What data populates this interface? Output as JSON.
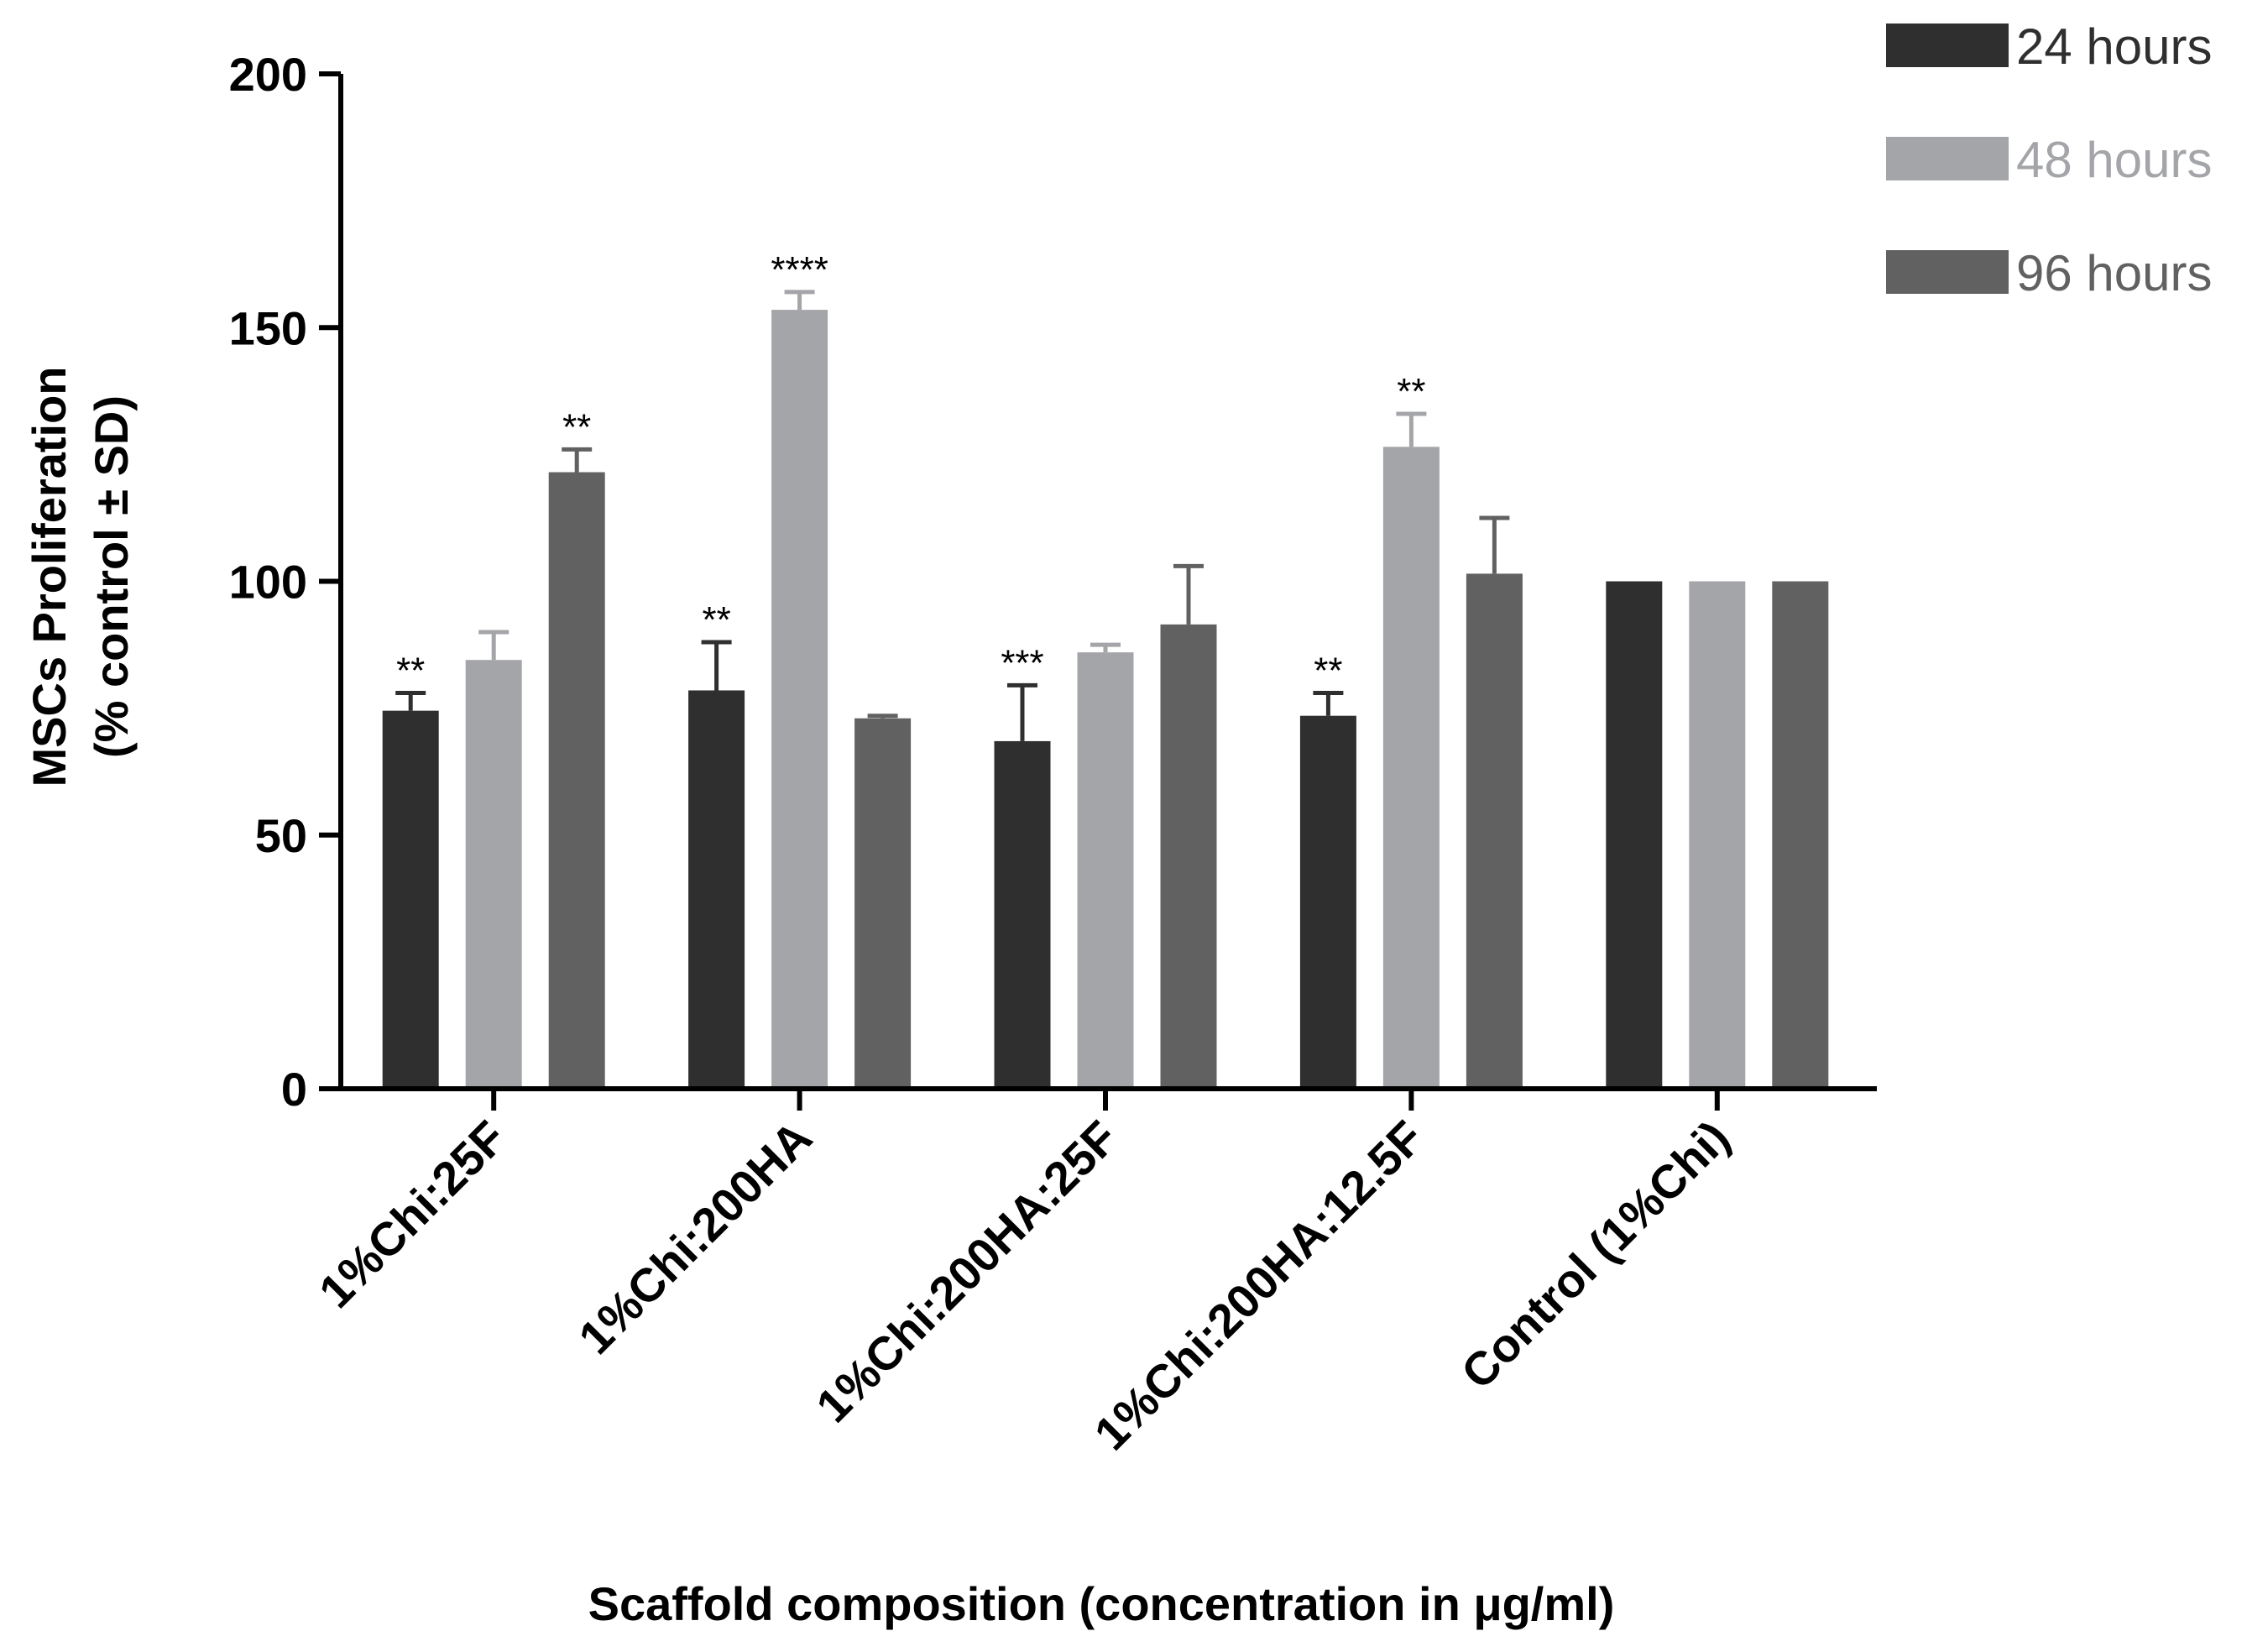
{
  "chart_data": {
    "type": "bar",
    "title": "",
    "xlabel": "Scaffold composition (concentration in μg/ml)",
    "ylabel_lines": [
      "MSCs Proliferation",
      "(% control ± SD)"
    ],
    "ylim": [
      0,
      200
    ],
    "yticks": [
      0,
      50,
      100,
      150,
      200
    ],
    "categories": [
      "1%Chi:25F",
      "1%Chi:200HA",
      "1%Chi:200HA:25F",
      "1%Chi:200HA:12.5F",
      "Control (1%Chi)"
    ],
    "series": [
      {
        "name": "24 hours",
        "color": "#2f2f2f",
        "legend_text_color": "#2f2f2f",
        "values": [
          74.5,
          78.5,
          68.5,
          73.5,
          100
        ],
        "errors": [
          3.5,
          9.5,
          11,
          4.5,
          0
        ],
        "significance": [
          "**",
          "**",
          "***",
          "**",
          ""
        ]
      },
      {
        "name": "48 hours",
        "color": "#a4a5a8",
        "legend_text_color": "#a4a5a8",
        "values": [
          84.5,
          153.5,
          86,
          126.5,
          100
        ],
        "errors": [
          5.5,
          3.5,
          1.5,
          6.5,
          0
        ],
        "significance": [
          "",
          "****",
          "",
          "**",
          ""
        ]
      },
      {
        "name": "96 hours",
        "color": "#616161",
        "legend_text_color": "#616161",
        "values": [
          121.5,
          73,
          91.5,
          101.5,
          100
        ],
        "errors": [
          4.5,
          0.5,
          11.5,
          11,
          0
        ],
        "significance": [
          "**",
          "",
          "",
          "",
          ""
        ]
      }
    ],
    "legend_position": "top-right",
    "grid": false
  }
}
